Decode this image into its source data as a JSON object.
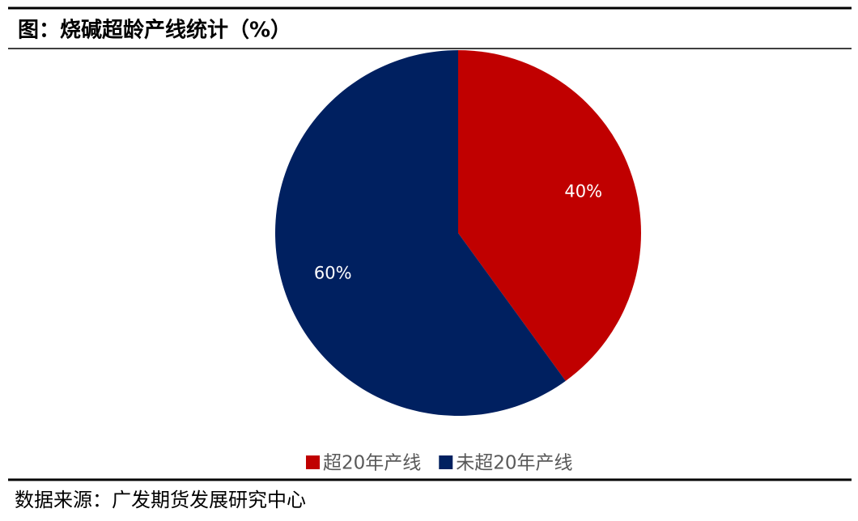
{
  "chart_data": {
    "type": "pie",
    "title": "图：烧碱超龄产线统计（%）",
    "categories": [
      "超20年产线",
      "未超20年产线"
    ],
    "values": [
      40,
      60
    ],
    "value_labels": [
      "40%",
      "60%"
    ],
    "colors": [
      "#c00000",
      "#002060"
    ],
    "legend": "bottom"
  },
  "source": "数据来源：广发期货发展研究中心"
}
